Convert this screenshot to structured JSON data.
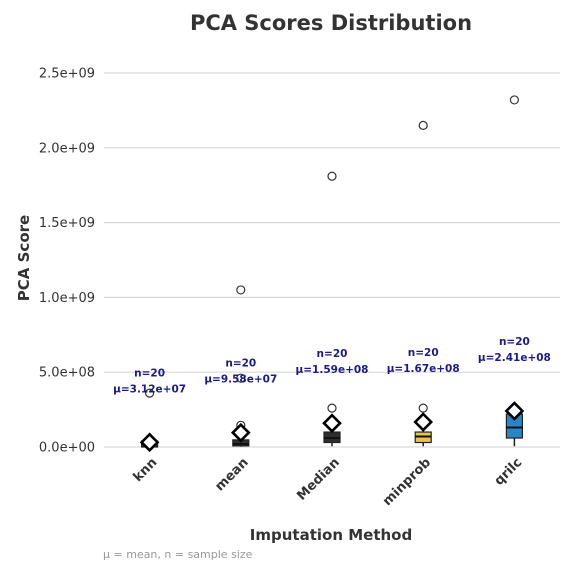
{
  "chart_data": {
    "type": "box",
    "title": "PCA Scores Distribution",
    "xlabel": "Imputation Method",
    "ylabel": "PCA Score",
    "caption": "μ = mean, n = sample size",
    "ylim": [
      -100000000,
      2650000000
    ],
    "yticks": [
      0,
      500000000,
      1000000000,
      1500000000,
      2000000000,
      2500000000
    ],
    "ytick_labels": [
      "0.0e+00",
      "5.0e+08",
      "1.0e+09",
      "1.5e+09",
      "2.0e+09",
      "2.5e+09"
    ],
    "grid": true,
    "legend": "none",
    "categories": [
      "knn",
      "mean",
      "Median",
      "minprob",
      "qrilc"
    ],
    "boxes": [
      {
        "name": "knn",
        "color": "#2e2e2e",
        "q1": 10000000,
        "median": 20000000,
        "q3": 30000000,
        "whisker_low": 2000000,
        "whisker_high": 40000000,
        "mean": 31200000,
        "n_label": "n=20",
        "mean_label": "μ=3.12e+07",
        "outliers": [
          360000000
        ]
      },
      {
        "name": "mean",
        "color": "#2e2e2e",
        "q1": 10000000,
        "median": 20000000,
        "q3": 45000000,
        "whisker_low": 2000000,
        "whisker_high": 110000000,
        "mean": 95800000,
        "n_label": "n=20",
        "mean_label": "μ=9.58e+07",
        "outliers": [
          145000000,
          460000000,
          1050000000
        ]
      },
      {
        "name": "Median",
        "color": "#2e2e2e",
        "q1": 30000000,
        "median": 60000000,
        "q3": 100000000,
        "whisker_low": 5000000,
        "whisker_high": 150000000,
        "mean": 159000000,
        "n_label": "n=20",
        "mean_label": "μ=1.59e+08",
        "outliers": [
          260000000,
          1810000000
        ]
      },
      {
        "name": "minprob",
        "color": "#e8c34a",
        "q1": 30000000,
        "median": 70000000,
        "q3": 100000000,
        "whisker_low": 5000000,
        "whisker_high": 150000000,
        "mean": 167000000,
        "n_label": "n=20",
        "mean_label": "μ=1.67e+08",
        "outliers": [
          260000000,
          2150000000
        ]
      },
      {
        "name": "qrilc",
        "color": "#2a84c8",
        "q1": 60000000,
        "median": 130000000,
        "q3": 220000000,
        "whisker_low": 5000000,
        "whisker_high": 260000000,
        "mean": 241000000,
        "n_label": "n=20",
        "mean_label": "μ=2.41e+08",
        "outliers": [
          2320000000
        ]
      }
    ]
  }
}
